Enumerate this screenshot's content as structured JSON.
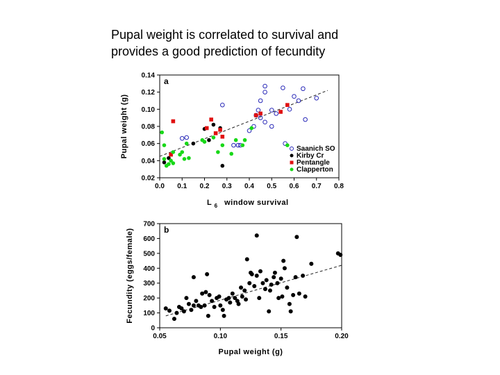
{
  "slide": {
    "title_line1": "Pupal weight is correlated to survival and",
    "title_line2": "provides a good prediction of fecundity"
  },
  "colors": {
    "axis": "#000000",
    "saanich": "#2a2ab8",
    "kirby": "#000000",
    "pentangle": "#e01010",
    "clapperton": "#18d818"
  },
  "chart_data": [
    {
      "type": "scatter",
      "panel_label": "a",
      "xlabel": "L",
      "xlabel_sub": "6",
      "xlabel_rest": "window survival",
      "ylabel": "Pupal weight (g)",
      "xlim": [
        0.0,
        0.8
      ],
      "ylim": [
        0.02,
        0.14
      ],
      "x_ticks": [
        "0.0",
        "0.1",
        "0.2",
        "0.3",
        "0.4",
        "0.5",
        "0.6",
        "0.7",
        "0.8"
      ],
      "x_tick_values": [
        0.0,
        0.1,
        0.2,
        0.3,
        0.4,
        0.5,
        0.6,
        0.7,
        0.8
      ],
      "y_ticks": [
        "0.02",
        "0.04",
        "0.06",
        "0.08",
        "0.10",
        "0.12",
        "0.14"
      ],
      "y_tick_values": [
        0.02,
        0.04,
        0.06,
        0.08,
        0.1,
        0.12,
        0.14
      ],
      "legend_position": "bottom-right",
      "trend": {
        "x": [
          0.0,
          0.75
        ],
        "y": [
          0.045,
          0.122
        ]
      },
      "series": [
        {
          "name": "Saanich SO",
          "marker": "open-circle",
          "color": "saanich",
          "x": [
            0.28,
            0.12,
            0.1,
            0.35,
            0.4,
            0.42,
            0.44,
            0.45,
            0.47,
            0.5,
            0.52,
            0.55,
            0.56,
            0.58,
            0.6,
            0.62,
            0.64,
            0.65,
            0.7,
            0.45,
            0.47,
            0.36,
            0.33,
            0.47,
            0.43,
            0.5
          ],
          "y": [
            0.105,
            0.067,
            0.066,
            0.058,
            0.075,
            0.08,
            0.099,
            0.11,
            0.12,
            0.099,
            0.095,
            0.125,
            0.06,
            0.1,
            0.115,
            0.11,
            0.124,
            0.088,
            0.113,
            0.09,
            0.085,
            0.058,
            0.058,
            0.127,
            0.093,
            0.08
          ]
        },
        {
          "name": "Kirby Cr",
          "marker": "filled-circle",
          "color": "kirby",
          "x": [
            0.02,
            0.04,
            0.15,
            0.2,
            0.24,
            0.27,
            0.28,
            0.22
          ],
          "y": [
            0.038,
            0.043,
            0.06,
            0.077,
            0.082,
            0.078,
            0.034,
            0.064
          ]
        },
        {
          "name": "Pentangle",
          "marker": "filled-square",
          "color": "pentangle",
          "x": [
            0.06,
            0.21,
            0.23,
            0.25,
            0.27,
            0.28,
            0.43,
            0.45,
            0.54,
            0.57,
            0.05
          ],
          "y": [
            0.086,
            0.078,
            0.088,
            0.072,
            0.076,
            0.068,
            0.093,
            0.095,
            0.097,
            0.105,
            0.047
          ]
        },
        {
          "name": "Clapperton",
          "marker": "filled-circle",
          "color": "clapperton",
          "x": [
            0.01,
            0.02,
            0.03,
            0.04,
            0.05,
            0.06,
            0.09,
            0.1,
            0.11,
            0.13,
            0.19,
            0.2,
            0.24,
            0.26,
            0.28,
            0.32,
            0.34,
            0.37,
            0.38,
            0.41,
            0.57,
            0.06,
            0.02,
            0.12
          ],
          "y": [
            0.073,
            0.058,
            0.034,
            0.036,
            0.04,
            0.05,
            0.047,
            0.05,
            0.042,
            0.043,
            0.064,
            0.062,
            0.067,
            0.05,
            0.058,
            0.048,
            0.064,
            0.058,
            0.064,
            0.078,
            0.058,
            0.037,
            0.042,
            0.06
          ]
        }
      ]
    },
    {
      "type": "scatter",
      "panel_label": "b",
      "xlabel": "Pupal weight (g)",
      "ylabel": "Fecundity (eggs/female)",
      "xlim": [
        0.05,
        0.2
      ],
      "ylim": [
        0,
        700
      ],
      "x_ticks": [
        "0.05",
        "0.10",
        "0.15",
        "0.20"
      ],
      "x_tick_values": [
        0.05,
        0.1,
        0.15,
        0.2
      ],
      "y_ticks": [
        "0",
        "100",
        "200",
        "300",
        "400",
        "500",
        "600",
        "700"
      ],
      "y_tick_values": [
        0,
        100,
        200,
        300,
        400,
        500,
        600,
        700
      ],
      "trend": {
        "x": [
          0.055,
          0.2
        ],
        "y": [
          80,
          420
        ]
      },
      "series": [
        {
          "name": "Fecundity",
          "marker": "filled-circle",
          "color": "kirby",
          "x": [
            0.055,
            0.058,
            0.062,
            0.064,
            0.066,
            0.068,
            0.07,
            0.072,
            0.074,
            0.076,
            0.078,
            0.08,
            0.082,
            0.084,
            0.085,
            0.087,
            0.088,
            0.09,
            0.091,
            0.093,
            0.095,
            0.097,
            0.099,
            0.1,
            0.102,
            0.103,
            0.105,
            0.107,
            0.108,
            0.11,
            0.112,
            0.114,
            0.115,
            0.117,
            0.118,
            0.12,
            0.121,
            0.122,
            0.124,
            0.125,
            0.126,
            0.128,
            0.13,
            0.132,
            0.133,
            0.135,
            0.137,
            0.138,
            0.14,
            0.141,
            0.142,
            0.144,
            0.145,
            0.147,
            0.148,
            0.15,
            0.151,
            0.152,
            0.153,
            0.155,
            0.157,
            0.158,
            0.16,
            0.162,
            0.165,
            0.168,
            0.17,
            0.175,
            0.197,
            0.199,
            0.163,
            0.13,
            0.089,
            0.078
          ],
          "y": [
            130,
            115,
            60,
            100,
            140,
            130,
            110,
            200,
            160,
            120,
            150,
            180,
            150,
            140,
            230,
            150,
            240,
            80,
            220,
            180,
            140,
            200,
            210,
            150,
            120,
            80,
            190,
            200,
            170,
            230,
            200,
            180,
            160,
            270,
            210,
            250,
            190,
            460,
            300,
            370,
            360,
            280,
            350,
            200,
            380,
            300,
            260,
            320,
            110,
            250,
            290,
            340,
            370,
            300,
            200,
            330,
            210,
            450,
            400,
            270,
            160,
            110,
            220,
            340,
            230,
            350,
            210,
            430,
            500,
            490,
            610,
            620,
            360,
            340
          ]
        }
      ]
    }
  ]
}
